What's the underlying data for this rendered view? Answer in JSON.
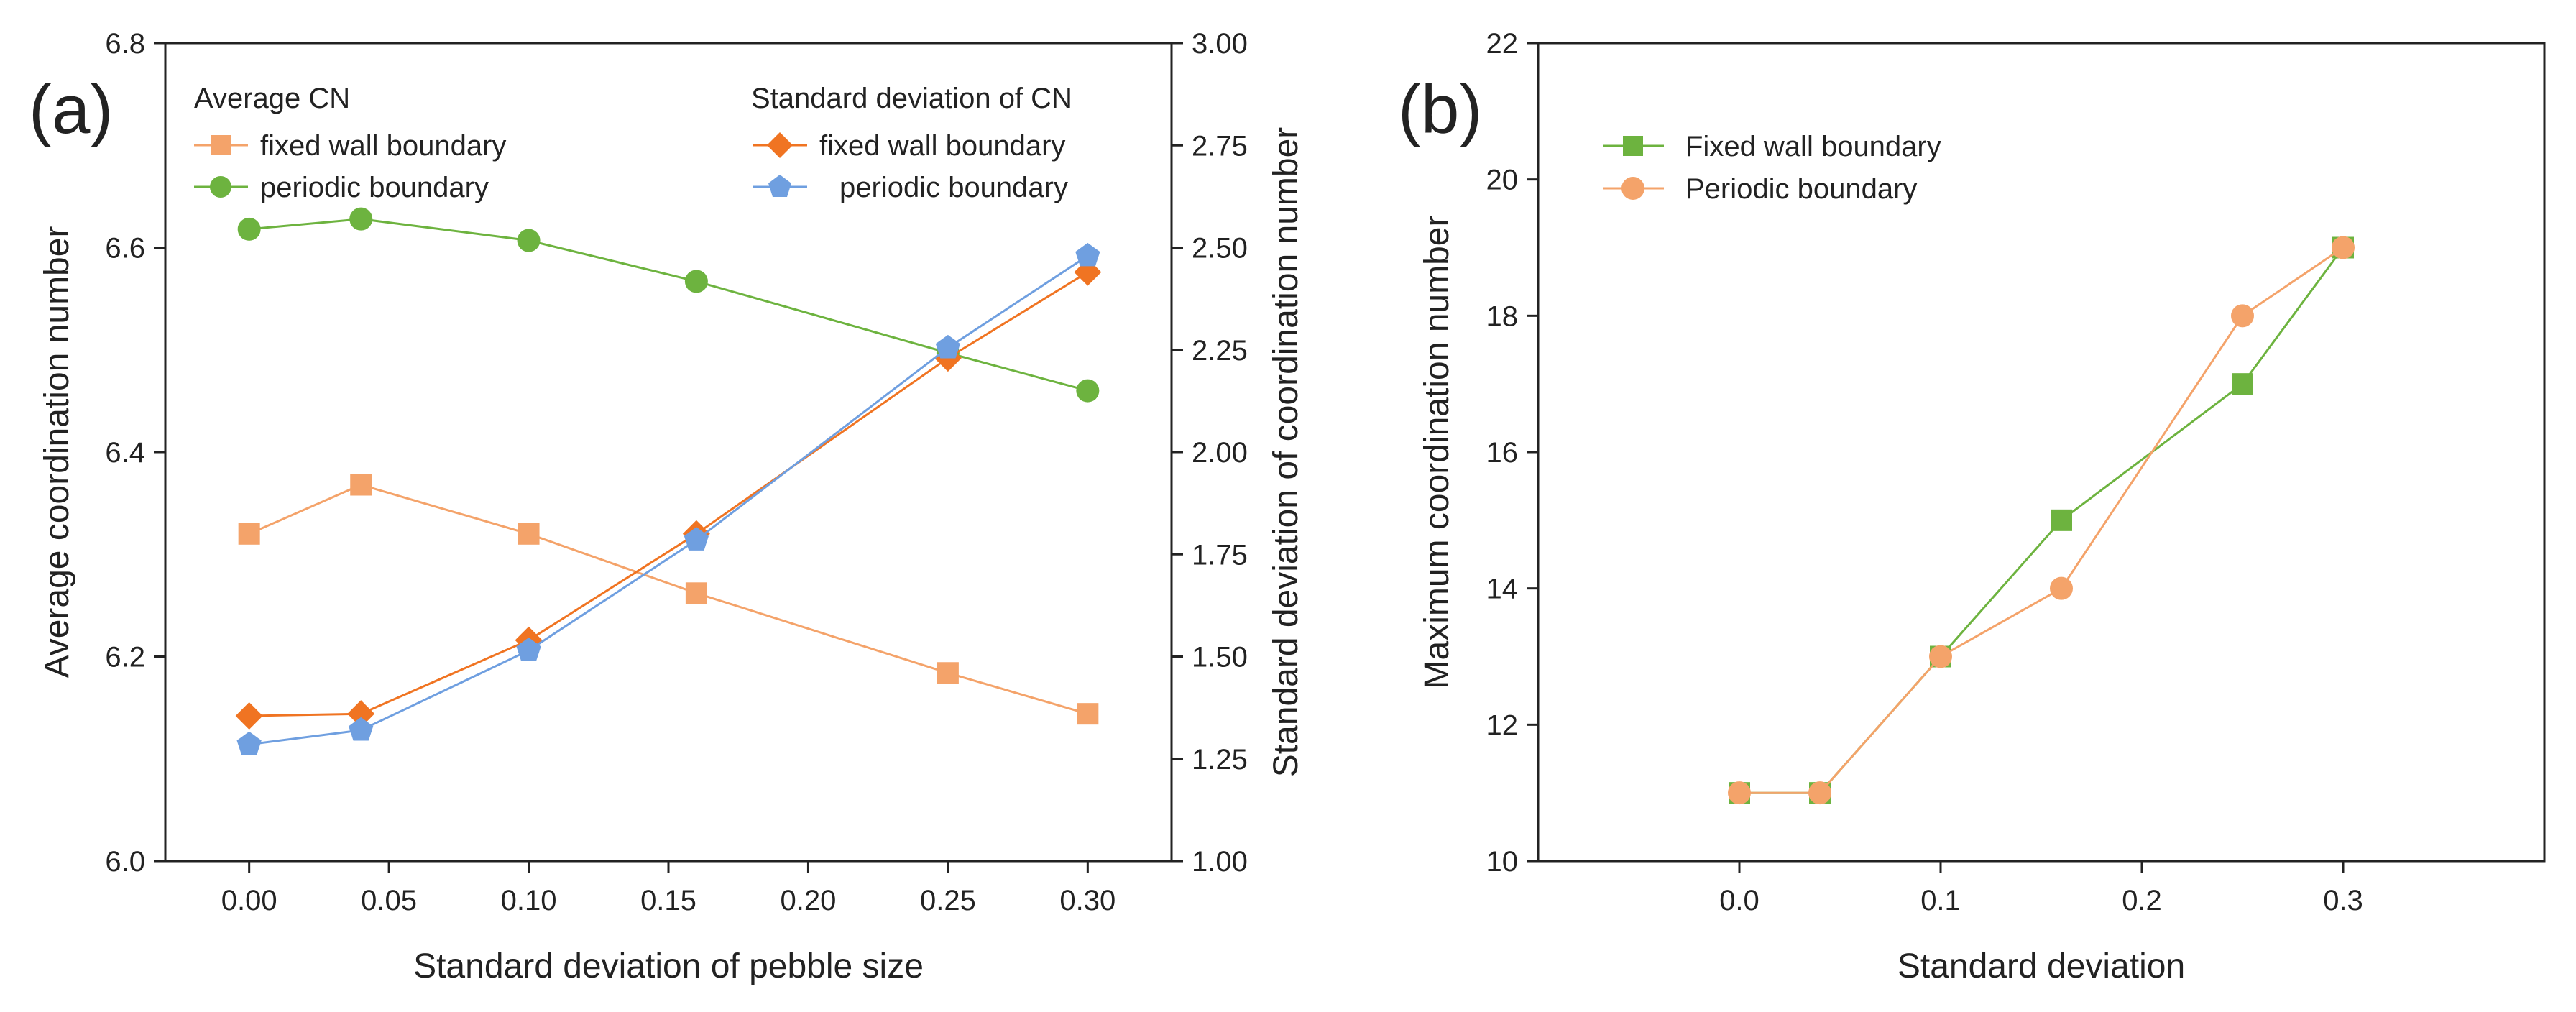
{
  "chart_data": [
    {
      "panel_label": "(a)",
      "type": "line",
      "x": [
        0.0,
        0.04,
        0.1,
        0.16,
        0.25,
        0.3
      ],
      "xlabel": "Standard deviation of pebble size",
      "ylabel": "Average coordination number",
      "y2label": "Standard deviation of coordination number",
      "xlim": [
        -0.03,
        0.33
      ],
      "ylim": [
        6.0,
        6.8
      ],
      "y2lim": [
        1.0,
        3.0
      ],
      "xticks": [
        "0.00",
        "0.05",
        "0.10",
        "0.15",
        "0.20",
        "0.25",
        "0.30"
      ],
      "yticks": [
        "6.0",
        "6.2",
        "6.4",
        "6.6",
        "6.8"
      ],
      "y2ticks": [
        "1.00",
        "1.25",
        "1.50",
        "1.75",
        "2.00",
        "2.25",
        "2.50",
        "2.75",
        "3.00"
      ],
      "legend_group_left_title": "Average CN",
      "legend_group_right_title": "Standard deviation of CN",
      "series": [
        {
          "name": "fixed wall boundary",
          "axis": "left",
          "marker": "square",
          "color": "#F4A36A",
          "values": [
            6.32,
            6.368,
            6.32,
            6.262,
            6.184,
            6.144
          ]
        },
        {
          "name": "periodic boundary",
          "axis": "left",
          "marker": "circle",
          "color": "#6DB33F",
          "values": [
            6.618,
            6.628,
            6.607,
            6.567,
            6.497,
            6.46
          ]
        },
        {
          "name": "fixed wall boundary",
          "axis": "right",
          "marker": "diamond",
          "color": "#F07422",
          "values": [
            1.355,
            1.36,
            1.54,
            1.8,
            2.23,
            2.44
          ]
        },
        {
          "name": "periodic boundary",
          "axis": "right",
          "marker": "pentagon",
          "color": "#6F9FE0",
          "values": [
            1.285,
            1.32,
            1.515,
            1.785,
            2.255,
            2.48
          ]
        }
      ]
    },
    {
      "panel_label": "(b)",
      "type": "line",
      "x": [
        0.0,
        0.04,
        0.1,
        0.16,
        0.25,
        0.3
      ],
      "xlabel": "Standard deviation",
      "ylabel": "Maximum coordination number",
      "xlim": [
        -0.1,
        0.4
      ],
      "ylim": [
        10,
        22
      ],
      "xticks": [
        "0.0",
        "0.1",
        "0.2",
        "0.3"
      ],
      "yticks": [
        "10",
        "12",
        "14",
        "16",
        "18",
        "20",
        "22"
      ],
      "series": [
        {
          "name": "Fixed wall boundary",
          "marker": "square",
          "color": "#6DB33F",
          "values": [
            11,
            11,
            13,
            15,
            17,
            19
          ]
        },
        {
          "name": "Periodic boundary",
          "marker": "circle",
          "color": "#F4A36A",
          "values": [
            11,
            11,
            13,
            14,
            18,
            19
          ]
        }
      ]
    }
  ]
}
